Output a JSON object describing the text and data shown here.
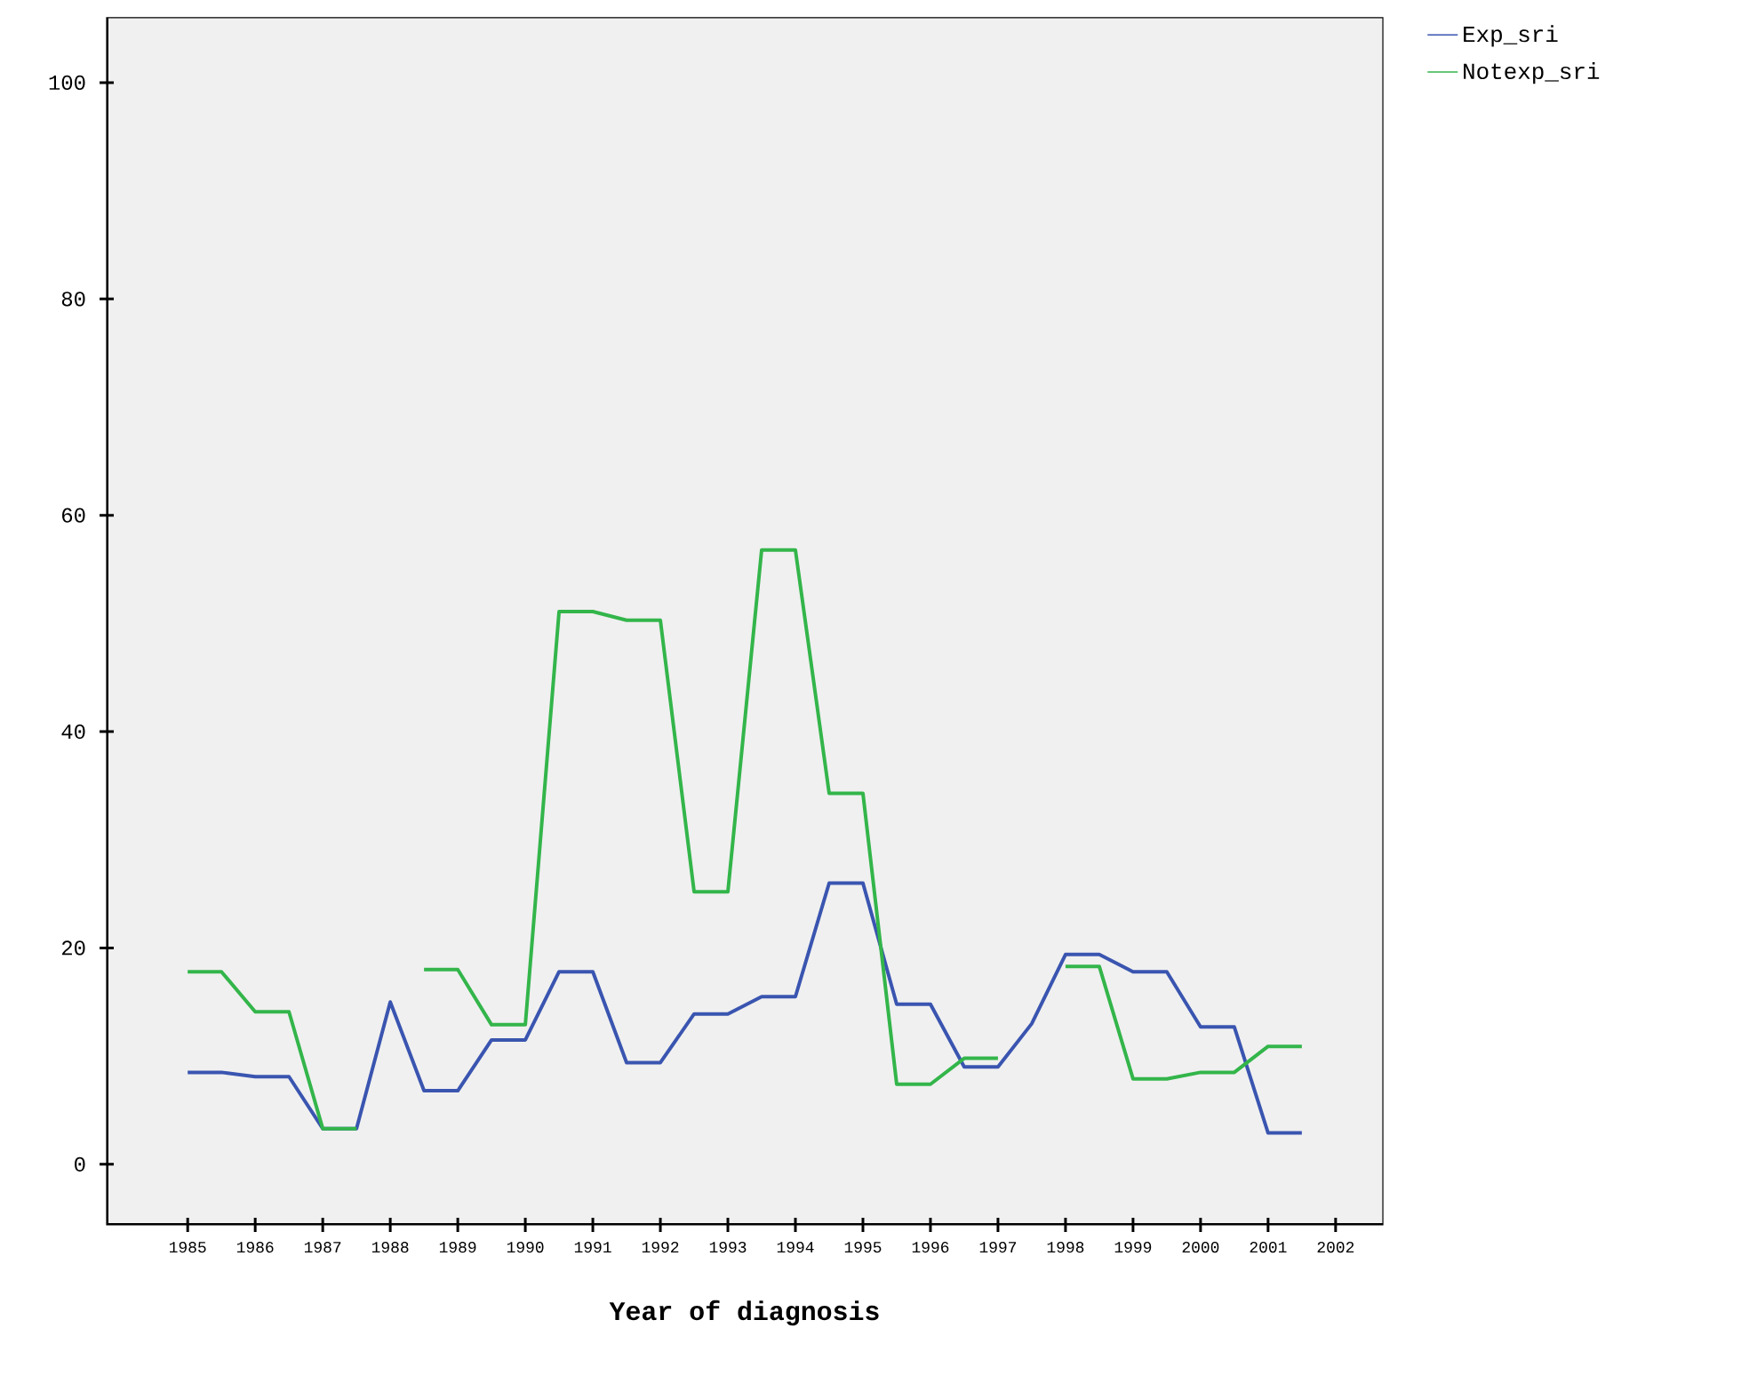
{
  "chart_data": {
    "type": "line",
    "xlabel": "Year of diagnosis",
    "x": [
      1985,
      1985.5,
      1986,
      1986.5,
      1987,
      1987.5,
      1988,
      1988.5,
      1989,
      1989.5,
      1990,
      1990.5,
      1991,
      1991.5,
      1992,
      1992.5,
      1993,
      1993.5,
      1994,
      1994.5,
      1995,
      1995.5,
      1996,
      1996.5,
      1997,
      1997.5,
      1998,
      1998.5,
      1999,
      1999.5,
      2000,
      2000.5,
      2001,
      2001.5
    ],
    "series": [
      {
        "name": "Exp_sri",
        "color": "#3a55b0",
        "values": [
          8.5,
          8.5,
          8.1,
          8.1,
          3.3,
          3.3,
          15.0,
          6.8,
          6.8,
          11.5,
          11.5,
          17.8,
          17.8,
          9.4,
          9.4,
          13.9,
          13.9,
          15.5,
          15.5,
          26.0,
          26.0,
          14.8,
          14.8,
          9.0,
          9.0,
          13.0,
          19.4,
          19.4,
          17.8,
          17.8,
          12.7,
          12.7,
          2.9,
          2.9
        ]
      },
      {
        "name": "Notexp_sri",
        "color": "#33b54a",
        "values": [
          17.8,
          17.8,
          14.1,
          14.1,
          3.3,
          3.3,
          null,
          18.0,
          18.0,
          12.9,
          12.9,
          51.1,
          51.1,
          50.3,
          50.3,
          25.2,
          25.2,
          56.8,
          56.8,
          34.3,
          34.3,
          7.4,
          7.4,
          9.8,
          9.8,
          null,
          18.3,
          18.3,
          7.9,
          7.9,
          8.5,
          8.5,
          10.9,
          10.9
        ]
      }
    ],
    "xlim": [
      1983.8,
      2002.7
    ],
    "ylim": [
      -5.6,
      106
    ],
    "xticks": [
      1985,
      1986,
      1987,
      1988,
      1989,
      1990,
      1991,
      1992,
      1993,
      1994,
      1995,
      1996,
      1997,
      1998,
      1999,
      2000,
      2001,
      2002
    ],
    "yticks": [
      0,
      20,
      40,
      60,
      80,
      100
    ],
    "grid": false,
    "legend": "top right",
    "marker": "none",
    "line_style": "solid"
  }
}
